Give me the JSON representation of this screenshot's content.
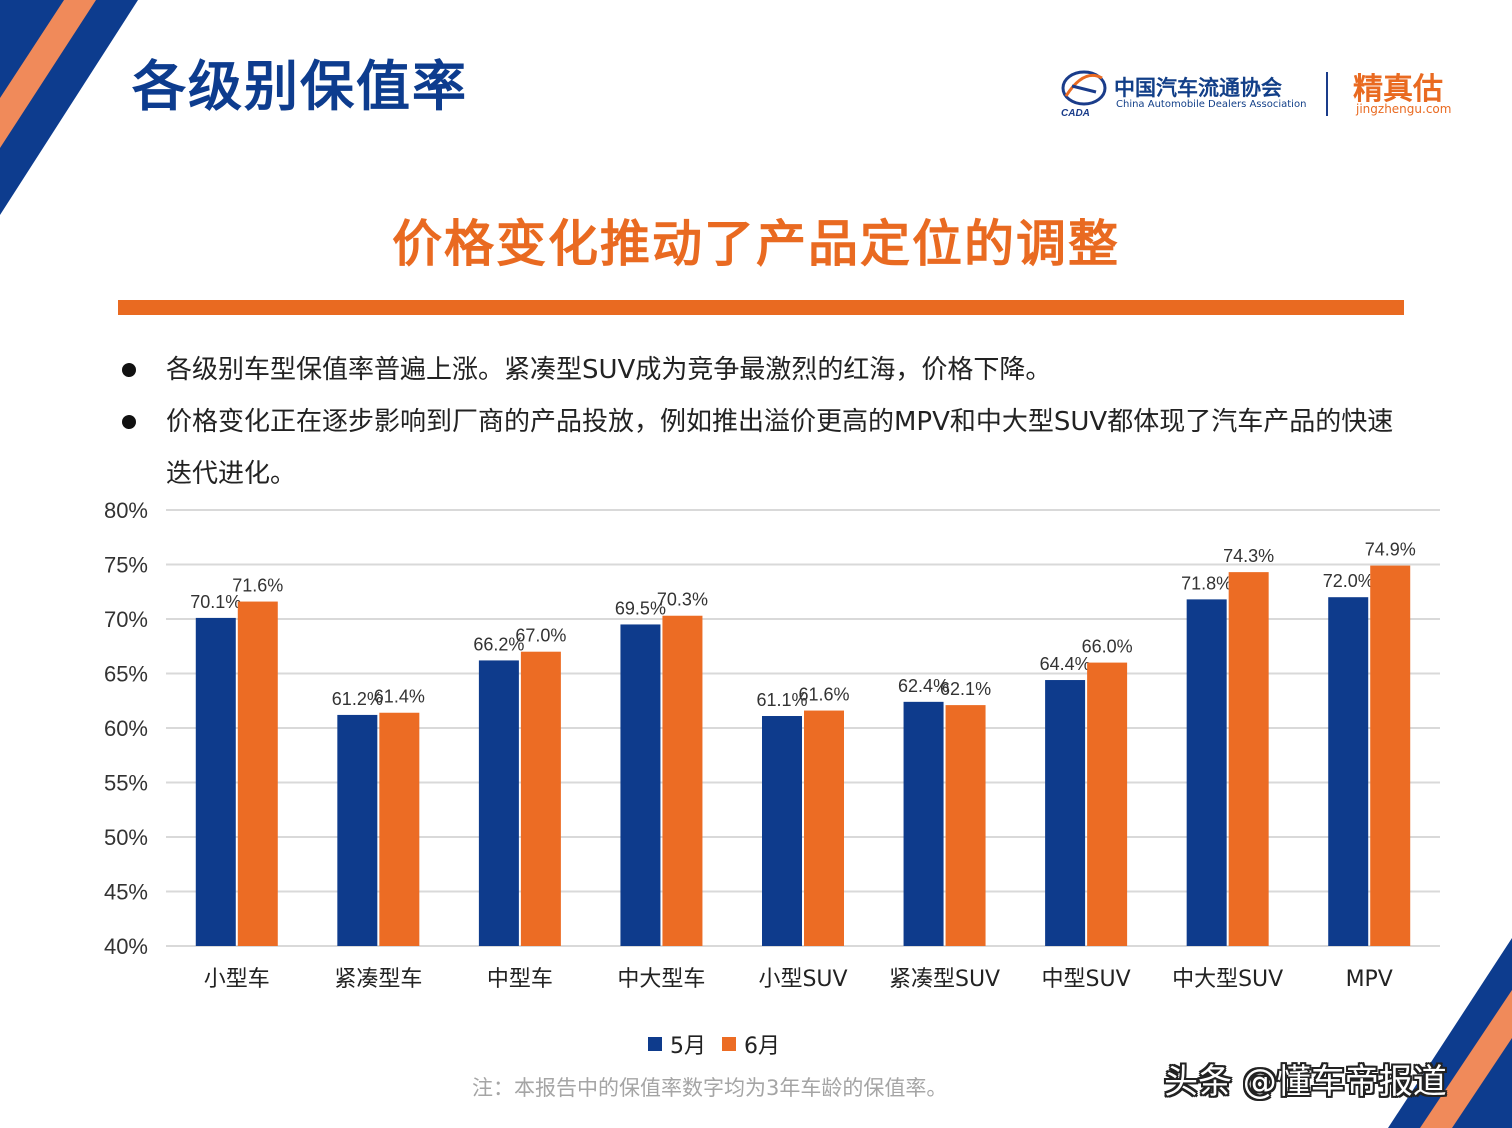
{
  "header": {
    "page_title": "各级别保值率",
    "association_name": "中国汽车流通协会",
    "association_name_en": "China Automobile Dealers Association",
    "association_abbr": "CADA",
    "brand_name": "精真估",
    "brand_domain": "jingzhengu.com"
  },
  "subtitle": "价格变化推动了产品定位的调整",
  "bullets": [
    "各级别车型保值率普遍上涨。紧凑型SUV成为竞争最激烈的红海，价格下降。",
    "价格变化正在逐步影响到厂商的产品投放，例如推出溢价更高的MPV和中大型SUV都体现了汽车产品的快速迭代进化。"
  ],
  "chart_data": {
    "type": "bar",
    "categories": [
      "小型车",
      "紧凑型车",
      "中型车",
      "中大型车",
      "小型SUV",
      "紧凑型SUV",
      "中型SUV",
      "中大型SUV",
      "MPV"
    ],
    "series": [
      {
        "name": "5月",
        "color": "#0e3b8c",
        "values": [
          70.1,
          61.2,
          66.2,
          69.5,
          61.1,
          62.4,
          64.4,
          71.8,
          72.0
        ]
      },
      {
        "name": "6月",
        "color": "#ec6c24",
        "values": [
          71.6,
          61.4,
          67.0,
          70.3,
          61.6,
          62.1,
          66.0,
          74.3,
          74.9
        ]
      }
    ],
    "ylim": [
      40,
      80
    ],
    "yticks": [
      40,
      45,
      50,
      55,
      60,
      65,
      70,
      75,
      80
    ],
    "unit": "%",
    "grid": true,
    "legend": "bottom"
  },
  "footnote": "注：本报告中的保值率数字均为3年车龄的保值率。",
  "source_watermark": "头条 @懂车帝报道"
}
